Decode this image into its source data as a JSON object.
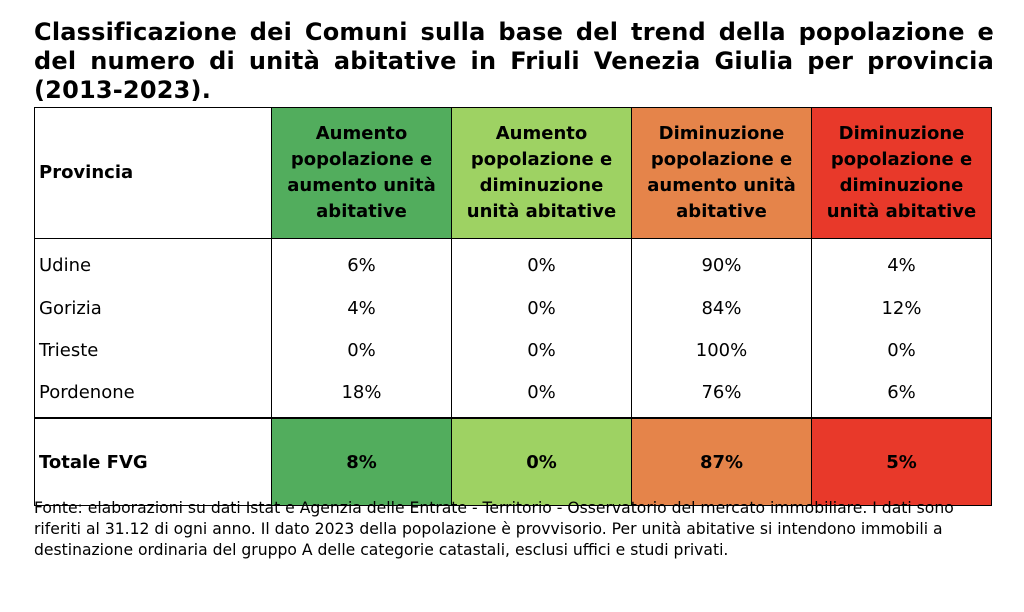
{
  "title": "Classificazione dei Comuni sulla base del trend della popolazione e del numero di unità abitative in Friuli Venezia Giulia per provincia (2013-2023).",
  "table": {
    "header": {
      "provincia": "Provincia",
      "col1": "Aumento popolazione e aumento unità abitative",
      "col2": "Aumento popolazione e diminuzione unità abitative",
      "col3": "Diminuzione popolazione e aumento unità abitative",
      "col4": "Diminuzione popolazione e diminuzione unità abitative"
    },
    "colors": {
      "col1": "#52ad5d",
      "col2": "#9ed263",
      "col3": "#e5844a",
      "col4": "#e8392a"
    },
    "rows": [
      {
        "name": "Udine",
        "v1": "6%",
        "v2": "0%",
        "v3": "90%",
        "v4": "4%"
      },
      {
        "name": "Gorizia",
        "v1": "4%",
        "v2": "0%",
        "v3": "84%",
        "v4": "12%"
      },
      {
        "name": "Trieste",
        "v1": "0%",
        "v2": "0%",
        "v3": "100%",
        "v4": "0%"
      },
      {
        "name": "Pordenone",
        "v1": "18%",
        "v2": "0%",
        "v3": "76%",
        "v4": "6%"
      }
    ],
    "total": {
      "name": "Totale FVG",
      "v1": "8%",
      "v2": "0%",
      "v3": "87%",
      "v4": "5%"
    }
  },
  "source": "Fonte: elaborazioni su dati Istat e Agenzia delle Entrate - Territorio - Osservatorio del mercato immobiliare. I dati sono riferiti al 31.12 di ogni anno. Il dato 2023 della popolazione è provvisorio. Per unità abitative si intendono immobili a destinazione ordinaria del gruppo A delle categorie catastali, esclusi uffici e studi privati."
}
